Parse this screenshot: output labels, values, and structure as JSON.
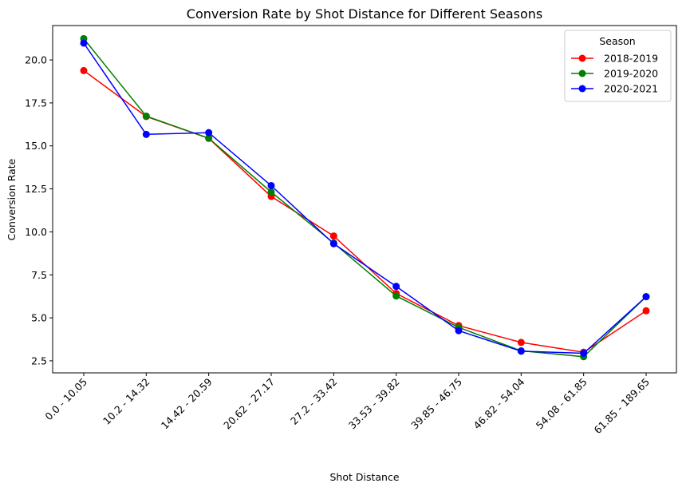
{
  "chart_data": {
    "type": "line",
    "title": "Conversion Rate by Shot Distance for Different Seasons",
    "xlabel": "Shot Distance",
    "ylabel": "Conversion Rate",
    "categories": [
      "0.0 - 10.05",
      "10.2 - 14.32",
      "14.42 - 20.59",
      "20.62 - 27.17",
      "27.2 - 33.42",
      "33.53 - 39.82",
      "39.85 - 46.75",
      "46.82 - 54.04",
      "54.08 - 61.85",
      "61.85 - 189.65"
    ],
    "ylim": [
      1.8,
      22.0
    ],
    "yticks": [
      2.5,
      5.0,
      7.5,
      10.0,
      12.5,
      15.0,
      17.5,
      20.0
    ],
    "ytick_labels": [
      "2.5",
      "5.0",
      "7.5",
      "10.0",
      "12.5",
      "15.0",
      "17.5",
      "20.0"
    ],
    "legend": {
      "title": "Season",
      "position": "top-right"
    },
    "grid": false,
    "series": [
      {
        "name": "2018-2019",
        "color": "#ff0000",
        "values": [
          19.38,
          16.71,
          15.44,
          12.06,
          9.76,
          6.42,
          4.55,
          3.57,
          3.0,
          5.41
        ]
      },
      {
        "name": "2019-2020",
        "color": "#008000",
        "values": [
          21.24,
          16.73,
          15.45,
          12.32,
          9.35,
          6.27,
          4.44,
          3.08,
          2.74,
          6.23
        ]
      },
      {
        "name": "2020-2021",
        "color": "#0000ff",
        "values": [
          20.98,
          15.67,
          15.77,
          12.69,
          9.31,
          6.83,
          4.25,
          3.06,
          2.94,
          6.23
        ]
      }
    ]
  }
}
